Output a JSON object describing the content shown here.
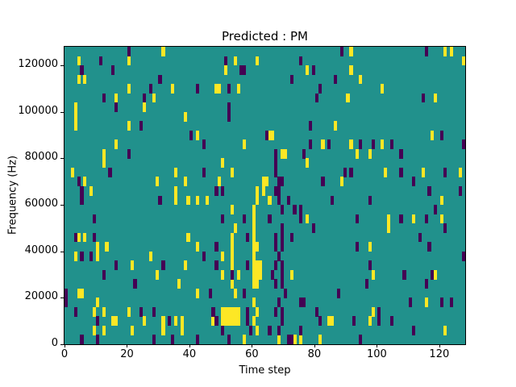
{
  "title": "Predicted : PM",
  "xlabel": "Time step",
  "ylabel": "Frequency (Hz)",
  "chart_data": {
    "type": "heatmap",
    "title": "Predicted : PM",
    "xlabel": "Time step",
    "ylabel": "Frequency (Hz)",
    "xlim": [
      0,
      128.3
    ],
    "ylim": [
      0,
      128000
    ],
    "x_ticks": [
      0,
      20,
      40,
      60,
      80,
      100,
      120
    ],
    "y_ticks": [
      0,
      20000,
      40000,
      60000,
      80000,
      100000,
      120000
    ],
    "grid": {
      "cols": 128,
      "rows": 32,
      "time_per_col": 1,
      "hz_per_row": 4000
    },
    "legend": "none",
    "colors": {
      "background": "#21918c",
      "yellow": "#fde725",
      "purple": "#440154"
    },
    "yellow_cells": [
      [
        4,
        30
      ],
      [
        4,
        28
      ],
      [
        6,
        28
      ],
      [
        20,
        30
      ],
      [
        31,
        31
      ],
      [
        54,
        30
      ],
      [
        61,
        30
      ],
      [
        51,
        29
      ],
      [
        20,
        27
      ],
      [
        34,
        27
      ],
      [
        49,
        27
      ],
      [
        28,
        26
      ],
      [
        16,
        26
      ],
      [
        25,
        25
      ],
      [
        3,
        25
      ],
      [
        3,
        24
      ],
      [
        3,
        23
      ],
      [
        20,
        23
      ],
      [
        38,
        24
      ],
      [
        42,
        22
      ],
      [
        57,
        21
      ],
      [
        16,
        21
      ],
      [
        12,
        20
      ],
      [
        12,
        19
      ],
      [
        50,
        19
      ],
      [
        2,
        18
      ],
      [
        35,
        18
      ],
      [
        6,
        17
      ],
      [
        29,
        17
      ],
      [
        38,
        17
      ],
      [
        35,
        16
      ],
      [
        8,
        16
      ],
      [
        48,
        27
      ],
      [
        55,
        27
      ],
      [
        66,
        22
      ],
      [
        69,
        20
      ],
      [
        49,
        17
      ],
      [
        63,
        17
      ],
      [
        64,
        17
      ],
      [
        63,
        16
      ],
      [
        61,
        16
      ],
      [
        53,
        18
      ],
      [
        91,
        31
      ],
      [
        121,
        31
      ],
      [
        123,
        31
      ],
      [
        127,
        30
      ],
      [
        91,
        29
      ],
      [
        77,
        29
      ],
      [
        94,
        28
      ],
      [
        101,
        27
      ],
      [
        90,
        26
      ],
      [
        118,
        26
      ],
      [
        86,
        23
      ],
      [
        65,
        22
      ],
      [
        117,
        22
      ],
      [
        82,
        21
      ],
      [
        91,
        21
      ],
      [
        101,
        21
      ],
      [
        93,
        20
      ],
      [
        97,
        20
      ],
      [
        70,
        20
      ],
      [
        77,
        19
      ],
      [
        102,
        18
      ],
      [
        114,
        18
      ],
      [
        126,
        18
      ],
      [
        88,
        17
      ],
      [
        35,
        15
      ],
      [
        39,
        15
      ],
      [
        42,
        15
      ],
      [
        45,
        15
      ],
      [
        39,
        11
      ],
      [
        4,
        11
      ],
      [
        6,
        11
      ],
      [
        10,
        10
      ],
      [
        13,
        10
      ],
      [
        42,
        10
      ],
      [
        3,
        9
      ],
      [
        10,
        9
      ],
      [
        27,
        9
      ],
      [
        21,
        8
      ],
      [
        38,
        8
      ],
      [
        29,
        7
      ],
      [
        36,
        6
      ],
      [
        42,
        5
      ],
      [
        4,
        5
      ],
      [
        5,
        5
      ],
      [
        10,
        4
      ],
      [
        9,
        3
      ],
      [
        12,
        3
      ],
      [
        20,
        3
      ],
      [
        15,
        2
      ],
      [
        16,
        2
      ],
      [
        25,
        2
      ],
      [
        31,
        2
      ],
      [
        35,
        2
      ],
      [
        37,
        2
      ],
      [
        9,
        1
      ],
      [
        12,
        1
      ],
      [
        21,
        1
      ],
      [
        31,
        1
      ],
      [
        37,
        1
      ],
      [
        60,
        14
      ],
      [
        60,
        13
      ],
      [
        60,
        12
      ],
      [
        60,
        11
      ],
      [
        60,
        10
      ],
      [
        60,
        9
      ],
      [
        60,
        8
      ],
      [
        60,
        7
      ],
      [
        60,
        6
      ],
      [
        60,
        4
      ],
      [
        60,
        2
      ],
      [
        61,
        15
      ],
      [
        61,
        10
      ],
      [
        61,
        8
      ],
      [
        61,
        7
      ],
      [
        61,
        6
      ],
      [
        61,
        3
      ],
      [
        61,
        1
      ],
      [
        62,
        8
      ],
      [
        62,
        7
      ],
      [
        53,
        14
      ],
      [
        53,
        11
      ],
      [
        53,
        10
      ],
      [
        53,
        9
      ],
      [
        53,
        8
      ],
      [
        53,
        6
      ],
      [
        54,
        12
      ],
      [
        55,
        7
      ],
      [
        54,
        5
      ],
      [
        50,
        3
      ],
      [
        50,
        2
      ],
      [
        51,
        3
      ],
      [
        51,
        2
      ],
      [
        52,
        3
      ],
      [
        52,
        2
      ],
      [
        53,
        3
      ],
      [
        53,
        2
      ],
      [
        54,
        3
      ],
      [
        54,
        2
      ],
      [
        55,
        3
      ],
      [
        55,
        2
      ],
      [
        50,
        9
      ],
      [
        50,
        7
      ],
      [
        47,
        2
      ],
      [
        57,
        0
      ],
      [
        65,
        15
      ],
      [
        72,
        7
      ],
      [
        68,
        0
      ],
      [
        77,
        13
      ],
      [
        103,
        13
      ],
      [
        103,
        12
      ],
      [
        111,
        13
      ],
      [
        120,
        13
      ],
      [
        120,
        15
      ],
      [
        97,
        10
      ],
      [
        98,
        7
      ],
      [
        118,
        7
      ],
      [
        115,
        4
      ],
      [
        84,
        2
      ],
      [
        85,
        2
      ],
      [
        98,
        3
      ],
      [
        97,
        2
      ],
      [
        121,
        1
      ],
      [
        73,
        0
      ],
      [
        81,
        0
      ],
      [
        75,
        0
      ]
    ],
    "purple_cells": [
      [
        20,
        31
      ],
      [
        11,
        30
      ],
      [
        51,
        30
      ],
      [
        15,
        29
      ],
      [
        5,
        29
      ],
      [
        57,
        29
      ],
      [
        56,
        29
      ],
      [
        30,
        28
      ],
      [
        27,
        27
      ],
      [
        42,
        27
      ],
      [
        52,
        27
      ],
      [
        12,
        26
      ],
      [
        25,
        26
      ],
      [
        16,
        25
      ],
      [
        52,
        25
      ],
      [
        24,
        23
      ],
      [
        52,
        24
      ],
      [
        40,
        22
      ],
      [
        64,
        22
      ],
      [
        44,
        21
      ],
      [
        20,
        20
      ],
      [
        67,
        20
      ],
      [
        67,
        19
      ],
      [
        14,
        18
      ],
      [
        44,
        18
      ],
      [
        4,
        17
      ],
      [
        68,
        17
      ],
      [
        5,
        16
      ],
      [
        50,
        16
      ],
      [
        68,
        16
      ],
      [
        48,
        16
      ],
      [
        88,
        31
      ],
      [
        115,
        31
      ],
      [
        75,
        30
      ],
      [
        79,
        29
      ],
      [
        86,
        28
      ],
      [
        72,
        28
      ],
      [
        81,
        27
      ],
      [
        80,
        26
      ],
      [
        114,
        26
      ],
      [
        78,
        23
      ],
      [
        120,
        22
      ],
      [
        127,
        21
      ],
      [
        78,
        21
      ],
      [
        84,
        21
      ],
      [
        94,
        21
      ],
      [
        98,
        21
      ],
      [
        104,
        21
      ],
      [
        76,
        20
      ],
      [
        107,
        20
      ],
      [
        67,
        18
      ],
      [
        89,
        18
      ],
      [
        91,
        18
      ],
      [
        107,
        18
      ],
      [
        121,
        18
      ],
      [
        69,
        17
      ],
      [
        82,
        17
      ],
      [
        111,
        17
      ],
      [
        116,
        16
      ],
      [
        67,
        16
      ],
      [
        126,
        16
      ],
      [
        5,
        15
      ],
      [
        30,
        15
      ],
      [
        9,
        13
      ],
      [
        3,
        11
      ],
      [
        9,
        11
      ],
      [
        8,
        9
      ],
      [
        5,
        9
      ],
      [
        16,
        8
      ],
      [
        31,
        8
      ],
      [
        12,
        7
      ],
      [
        22,
        6
      ],
      [
        44,
        9
      ],
      [
        46,
        5
      ],
      [
        0,
        5
      ],
      [
        0,
        4
      ],
      [
        3,
        3
      ],
      [
        24,
        3
      ],
      [
        28,
        3
      ],
      [
        47,
        3
      ],
      [
        10,
        2
      ],
      [
        33,
        2
      ],
      [
        48,
        2
      ],
      [
        5,
        0
      ],
      [
        10,
        0
      ],
      [
        28,
        0
      ],
      [
        34,
        0
      ],
      [
        42,
        0
      ],
      [
        65,
        13
      ],
      [
        69,
        14
      ],
      [
        69,
        12
      ],
      [
        69,
        11
      ],
      [
        67,
        11
      ],
      [
        67,
        10
      ],
      [
        69,
        10
      ],
      [
        68,
        9
      ],
      [
        67,
        8
      ],
      [
        69,
        8
      ],
      [
        69,
        7
      ],
      [
        66,
        7
      ],
      [
        69,
        6
      ],
      [
        67,
        6
      ],
      [
        70,
        5
      ],
      [
        68,
        4
      ],
      [
        67,
        3
      ],
      [
        69,
        3
      ],
      [
        69,
        2
      ],
      [
        68,
        1
      ],
      [
        65,
        1
      ],
      [
        71,
        15
      ],
      [
        68,
        15
      ],
      [
        73,
        14
      ],
      [
        72,
        11
      ],
      [
        57,
        13
      ],
      [
        58,
        11
      ],
      [
        58,
        8
      ],
      [
        57,
        5
      ],
      [
        58,
        3
      ],
      [
        58,
        2
      ],
      [
        59,
        1
      ],
      [
        48,
        10
      ],
      [
        48,
        8
      ],
      [
        50,
        13
      ],
      [
        53,
        7
      ],
      [
        50,
        1
      ],
      [
        52,
        0
      ],
      [
        71,
        0
      ],
      [
        72,
        0
      ],
      [
        85,
        15
      ],
      [
        97,
        15
      ],
      [
        75,
        14
      ],
      [
        75,
        13
      ],
      [
        79,
        12
      ],
      [
        93,
        13
      ],
      [
        107,
        13
      ],
      [
        115,
        13
      ],
      [
        118,
        14
      ],
      [
        121,
        12
      ],
      [
        113,
        11
      ],
      [
        93,
        10
      ],
      [
        116,
        10
      ],
      [
        127,
        9
      ],
      [
        97,
        8
      ],
      [
        108,
        7
      ],
      [
        117,
        7
      ],
      [
        115,
        6
      ],
      [
        96,
        6
      ],
      [
        87,
        5
      ],
      [
        75,
        4
      ],
      [
        76,
        4
      ],
      [
        110,
        4
      ],
      [
        120,
        4
      ],
      [
        123,
        4
      ],
      [
        80,
        3
      ],
      [
        100,
        3
      ],
      [
        81,
        2
      ],
      [
        100,
        2
      ],
      [
        104,
        2
      ],
      [
        92,
        2
      ],
      [
        111,
        1
      ],
      [
        75,
        1
      ],
      [
        94,
        0
      ]
    ]
  }
}
